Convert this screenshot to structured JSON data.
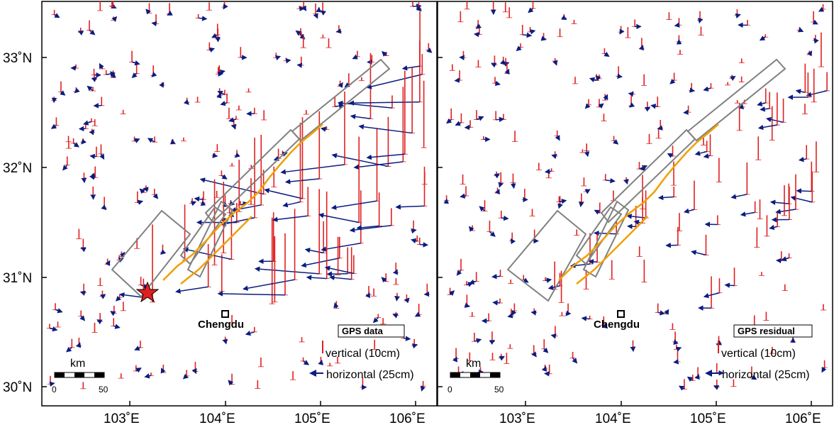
{
  "panels": [
    {
      "id": "left",
      "legend_box_label": "GPS data",
      "vertical_legend": "vertical (10cm)",
      "horizontal_legend": "horizontal (25cm)",
      "city": "Chengdu",
      "scale_unit": "km",
      "scale_ticks": [
        "0",
        "50"
      ],
      "show_epicenter": true
    },
    {
      "id": "right",
      "legend_box_label": "GPS residual",
      "vertical_legend": "vertical (10cm)",
      "horizontal_legend": "horizontal (25cm)",
      "city": "Chengdu",
      "scale_unit": "km",
      "scale_ticks": [
        "0",
        "50"
      ],
      "show_epicenter": false
    }
  ],
  "axes": {
    "x_ticks": [
      "103˚E",
      "104˚E",
      "105˚E",
      "106˚E"
    ],
    "y_ticks": [
      "33˚N",
      "32˚N",
      "31˚N",
      "30˚N"
    ]
  },
  "colors": {
    "vertical": "#e02020",
    "horizontal": "#0b1d80",
    "fault_trace": "#f0a000",
    "fault_box": "#808080",
    "epicenter": "#e02020"
  },
  "icons": {
    "epicenter": "star-icon",
    "city": "square-marker-icon"
  }
}
